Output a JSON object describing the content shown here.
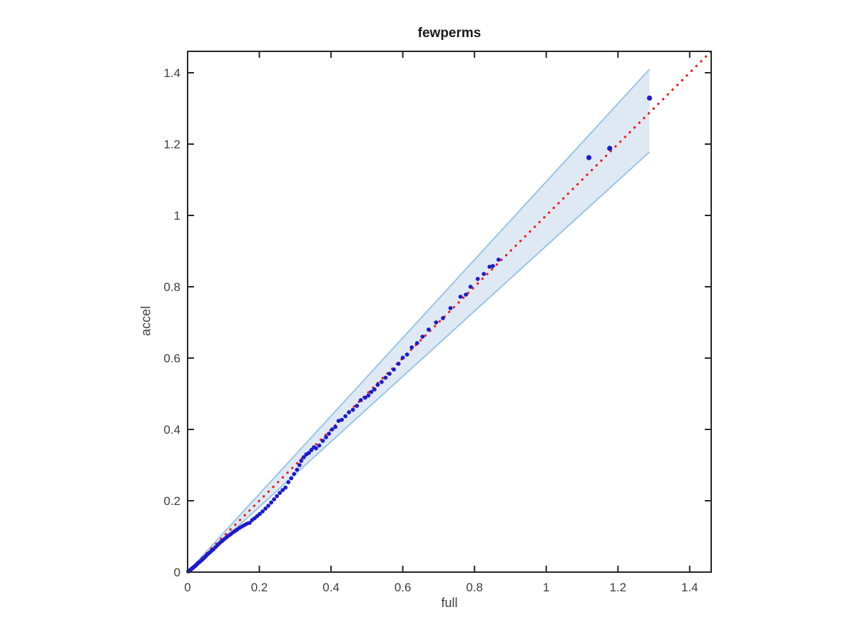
{
  "figure": {
    "background": "#ffffff"
  },
  "chart_data": {
    "type": "scatter",
    "title": "fewperms",
    "xlabel": "full",
    "ylabel": "accel",
    "xlim": [
      0,
      1.46
    ],
    "ylim": [
      0,
      1.46
    ],
    "x_ticks": [
      0,
      0.2,
      0.4,
      0.6,
      0.8,
      1,
      1.2,
      1.4
    ],
    "y_ticks": [
      0,
      0.2,
      0.4,
      0.6,
      0.8,
      1,
      1.2,
      1.4
    ],
    "x_tick_labels": [
      "0",
      "0.2",
      "0.4",
      "0.6",
      "0.8",
      "1",
      "1.2",
      "1.4"
    ],
    "y_tick_labels": [
      "0",
      "0.2",
      "0.4",
      "0.6",
      "0.8",
      "1",
      "1.2",
      "1.4"
    ],
    "grid": false,
    "legend": "none",
    "colors": {
      "points": "#1b1bd0",
      "reference_line": "#ee2015",
      "band_fill": "#dfe9f4",
      "band_edge": "#9ac6e6",
      "axis": "#262626",
      "tick_text": "#3d3d3d"
    },
    "reference_line": {
      "name": "identity-line-y-equals-x",
      "style": "dotted",
      "from": [
        0,
        0
      ],
      "to": [
        1.46,
        1.46
      ]
    },
    "confidence_band": {
      "name": "confidence-envelope",
      "vertices": [
        [
          0,
          0
        ],
        [
          1.288,
          1.41
        ],
        [
          1.288,
          1.178
        ]
      ],
      "upper_edge": [
        [
          0,
          0
        ],
        [
          1.288,
          1.41
        ]
      ],
      "lower_edge": [
        [
          0,
          0
        ],
        [
          1.288,
          1.178
        ]
      ]
    },
    "series": [
      {
        "name": "qq-points",
        "marker": "filled-circle",
        "points": [
          [
            0.002,
            0.002
          ],
          [
            0.004,
            0.003
          ],
          [
            0.006,
            0.005
          ],
          [
            0.008,
            0.006
          ],
          [
            0.01,
            0.008
          ],
          [
            0.012,
            0.01
          ],
          [
            0.014,
            0.011
          ],
          [
            0.016,
            0.013
          ],
          [
            0.018,
            0.015
          ],
          [
            0.021,
            0.017
          ],
          [
            0.024,
            0.02
          ],
          [
            0.027,
            0.023
          ],
          [
            0.03,
            0.026
          ],
          [
            0.033,
            0.028
          ],
          [
            0.036,
            0.031
          ],
          [
            0.04,
            0.034
          ],
          [
            0.044,
            0.038
          ],
          [
            0.048,
            0.042
          ],
          [
            0.052,
            0.046
          ],
          [
            0.057,
            0.051
          ],
          [
            0.062,
            0.055
          ],
          [
            0.067,
            0.06
          ],
          [
            0.072,
            0.064
          ],
          [
            0.078,
            0.07
          ],
          [
            0.084,
            0.076
          ],
          [
            0.09,
            0.082
          ],
          [
            0.096,
            0.087
          ],
          [
            0.102,
            0.092
          ],
          [
            0.108,
            0.097
          ],
          [
            0.114,
            0.102
          ],
          [
            0.12,
            0.106
          ],
          [
            0.126,
            0.111
          ],
          [
            0.132,
            0.115
          ],
          [
            0.138,
            0.119
          ],
          [
            0.145,
            0.124
          ],
          [
            0.152,
            0.128
          ],
          [
            0.159,
            0.132
          ],
          [
            0.166,
            0.136
          ],
          [
            0.173,
            0.138
          ],
          [
            0.18,
            0.146
          ],
          [
            0.187,
            0.151
          ],
          [
            0.194,
            0.157
          ],
          [
            0.201,
            0.163
          ],
          [
            0.209,
            0.17
          ],
          [
            0.217,
            0.178
          ],
          [
            0.225,
            0.186
          ],
          [
            0.233,
            0.195
          ],
          [
            0.241,
            0.204
          ],
          [
            0.249,
            0.213
          ],
          [
            0.257,
            0.222
          ],
          [
            0.265,
            0.23
          ],
          [
            0.273,
            0.237
          ],
          [
            0.281,
            0.252
          ],
          [
            0.289,
            0.263
          ],
          [
            0.297,
            0.275
          ],
          [
            0.305,
            0.287
          ],
          [
            0.312,
            0.3
          ],
          [
            0.317,
            0.312
          ],
          [
            0.324,
            0.322
          ],
          [
            0.331,
            0.33
          ],
          [
            0.338,
            0.334
          ],
          [
            0.345,
            0.342
          ],
          [
            0.352,
            0.35
          ],
          [
            0.358,
            0.347
          ],
          [
            0.367,
            0.355
          ],
          [
            0.377,
            0.368
          ],
          [
            0.386,
            0.378
          ],
          [
            0.394,
            0.388
          ],
          [
            0.403,
            0.4
          ],
          [
            0.412,
            0.407
          ],
          [
            0.421,
            0.424
          ],
          [
            0.43,
            0.427
          ],
          [
            0.44,
            0.437
          ],
          [
            0.45,
            0.448
          ],
          [
            0.461,
            0.455
          ],
          [
            0.472,
            0.466
          ],
          [
            0.483,
            0.482
          ],
          [
            0.495,
            0.489
          ],
          [
            0.504,
            0.495
          ],
          [
            0.512,
            0.505
          ],
          [
            0.521,
            0.512
          ],
          [
            0.53,
            0.525
          ],
          [
            0.541,
            0.533
          ],
          [
            0.552,
            0.545
          ],
          [
            0.563,
            0.556
          ],
          [
            0.575,
            0.568
          ],
          [
            0.588,
            0.584
          ],
          [
            0.6,
            0.601
          ],
          [
            0.612,
            0.61
          ],
          [
            0.625,
            0.63
          ],
          [
            0.64,
            0.642
          ],
          [
            0.655,
            0.66
          ],
          [
            0.672,
            0.68
          ],
          [
            0.693,
            0.7
          ],
          [
            0.712,
            0.712
          ],
          [
            0.733,
            0.74
          ],
          [
            0.761,
            0.772
          ],
          [
            0.776,
            0.778
          ],
          [
            0.789,
            0.8
          ],
          [
            0.809,
            0.822
          ],
          [
            0.826,
            0.836
          ],
          [
            0.842,
            0.856
          ],
          [
            0.851,
            0.858
          ],
          [
            0.867,
            0.876
          ],
          [
            1.119,
            1.162
          ],
          [
            1.177,
            1.188
          ],
          [
            1.288,
            1.329
          ]
        ]
      }
    ]
  }
}
